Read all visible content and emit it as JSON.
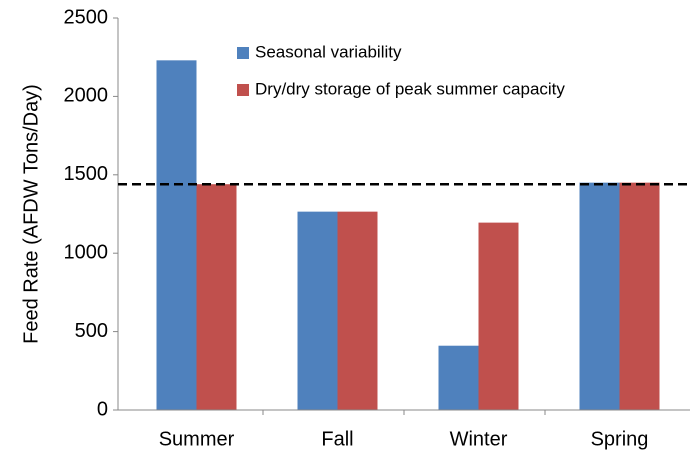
{
  "chart_data": {
    "type": "bar",
    "y_label": "Feed Rate (AFDW Tons/Day)",
    "categories": [
      "Summer",
      "Fall",
      "Winter",
      "Spring"
    ],
    "series": [
      {
        "name": "Seasonal variability",
        "color": "#4f81bd",
        "values": [
          2230,
          1265,
          410,
          1450
        ]
      },
      {
        "name": "Dry/dry storage of peak summer capacity",
        "color": "#c0504d",
        "values": [
          1440,
          1265,
          1195,
          1450
        ]
      }
    ],
    "reference_line": 1440,
    "ylim": [
      0,
      2500
    ],
    "yticks": [
      0,
      500,
      1000,
      1500,
      2000,
      2500
    ],
    "grid": false
  }
}
